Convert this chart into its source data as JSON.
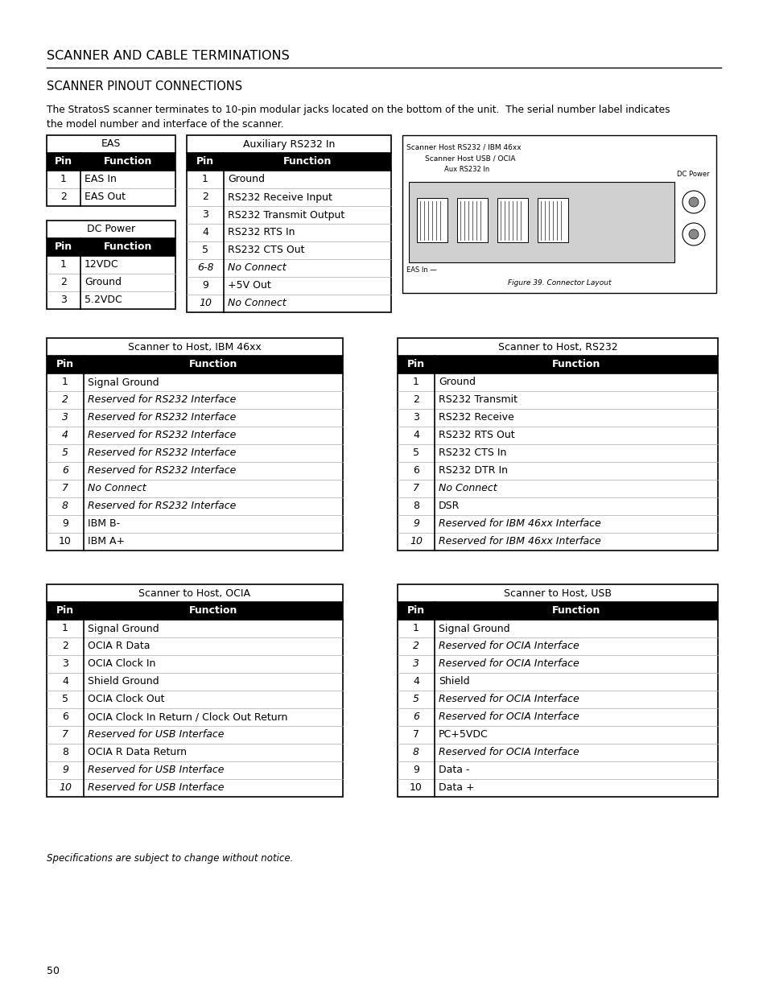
{
  "title": "Scanner and Cable Terminations",
  "subtitle": "Scanner Pinout Connections",
  "body_text1": "The StratosS scanner terminates to 10-pin modular jacks located on the bottom of the unit.  The serial number label indicates",
  "body_text2": "the model number and interface of the scanner.",
  "page_number": "50",
  "footer_text": "Specifications are subject to change without notice.",
  "eas_table": {
    "title": "EAS",
    "headers": [
      "Pin",
      "Function"
    ],
    "rows": [
      [
        "1",
        "EAS In",
        false
      ],
      [
        "2",
        "EAS Out",
        false
      ]
    ]
  },
  "dc_power_table": {
    "title": "DC Power",
    "headers": [
      "Pin",
      "Function"
    ],
    "rows": [
      [
        "1",
        "12VDC",
        false
      ],
      [
        "2",
        "Ground",
        false
      ],
      [
        "3",
        "5.2VDC",
        false
      ]
    ]
  },
  "aux_rs232_table": {
    "title": "Auxiliary RS232 In",
    "headers": [
      "Pin",
      "Function"
    ],
    "rows": [
      [
        "1",
        "Ground",
        false
      ],
      [
        "2",
        "RS232 Receive Input",
        false
      ],
      [
        "3",
        "RS232 Transmit Output",
        false
      ],
      [
        "4",
        "RS232 RTS In",
        false
      ],
      [
        "5",
        "RS232 CTS Out",
        false
      ],
      [
        "6-8",
        "No Connect",
        true
      ],
      [
        "9",
        "+5V Out",
        false
      ],
      [
        "10",
        "No Connect",
        true
      ]
    ]
  },
  "ibm46xx_table": {
    "title": "Scanner to Host, IBM 46xx",
    "headers": [
      "Pin",
      "Function"
    ],
    "rows": [
      [
        "1",
        "Signal Ground",
        false
      ],
      [
        "2",
        "Reserved for RS232 Interface",
        true
      ],
      [
        "3",
        "Reserved for RS232 Interface",
        true
      ],
      [
        "4",
        "Reserved for RS232 Interface",
        true
      ],
      [
        "5",
        "Reserved for RS232 Interface",
        true
      ],
      [
        "6",
        "Reserved for RS232 Interface",
        true
      ],
      [
        "7",
        "No Connect",
        true
      ],
      [
        "8",
        "Reserved for RS232 Interface",
        true
      ],
      [
        "9",
        "IBM B-",
        false
      ],
      [
        "10",
        "IBM A+",
        false
      ]
    ]
  },
  "rs232_table": {
    "title": "Scanner to Host, RS232",
    "headers": [
      "Pin",
      "Function"
    ],
    "rows": [
      [
        "1",
        "Ground",
        false
      ],
      [
        "2",
        "RS232 Transmit",
        false
      ],
      [
        "3",
        "RS232 Receive",
        false
      ],
      [
        "4",
        "RS232 RTS Out",
        false
      ],
      [
        "5",
        "RS232 CTS In",
        false
      ],
      [
        "6",
        "RS232 DTR In",
        false
      ],
      [
        "7",
        "No Connect",
        true
      ],
      [
        "8",
        "DSR",
        false
      ],
      [
        "9",
        "Reserved for IBM 46xx Interface",
        true
      ],
      [
        "10",
        "Reserved for IBM 46xx Interface",
        true
      ]
    ]
  },
  "ocia_table": {
    "title": "Scanner to Host, OCIA",
    "headers": [
      "Pin",
      "Function"
    ],
    "rows": [
      [
        "1",
        "Signal Ground",
        false
      ],
      [
        "2",
        "OCIA R Data",
        false
      ],
      [
        "3",
        "OCIA Clock In",
        false
      ],
      [
        "4",
        "Shield Ground",
        false
      ],
      [
        "5",
        "OCIA Clock Out",
        false
      ],
      [
        "6",
        "OCIA Clock In Return / Clock Out Return",
        false
      ],
      [
        "7",
        "Reserved for USB Interface",
        true
      ],
      [
        "8",
        "OCIA R Data Return",
        false
      ],
      [
        "9",
        "Reserved for USB Interface",
        true
      ],
      [
        "10",
        "Reserved for USB Interface",
        true
      ]
    ]
  },
  "usb_table": {
    "title": "Scanner to Host, USB",
    "headers": [
      "Pin",
      "Function"
    ],
    "rows": [
      [
        "1",
        "Signal Ground",
        false
      ],
      [
        "2",
        "Reserved for OCIA Interface",
        true
      ],
      [
        "3",
        "Reserved for OCIA Interface",
        true
      ],
      [
        "4",
        "Shield",
        false
      ],
      [
        "5",
        "Reserved for OCIA Interface",
        true
      ],
      [
        "6",
        "Reserved for OCIA Interface",
        true
      ],
      [
        "7",
        "PC+5VDC",
        false
      ],
      [
        "8",
        "Reserved for OCIA Interface",
        true
      ],
      [
        "9",
        "Data -",
        false
      ],
      [
        "10",
        "Data +",
        false
      ]
    ]
  }
}
